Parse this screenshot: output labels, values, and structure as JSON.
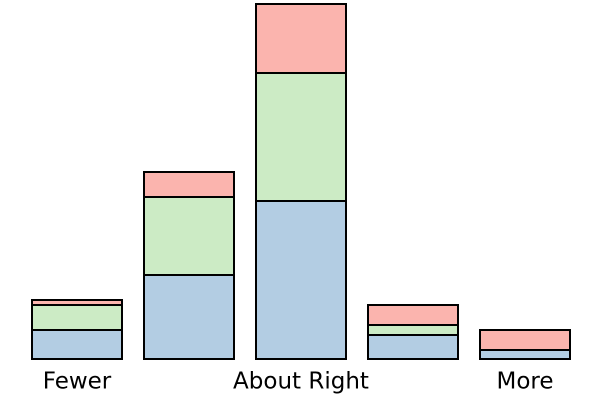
{
  "chart_data": {
    "type": "stacked_bar",
    "categories": [
      "Fewer",
      null,
      "About Right",
      null,
      "More"
    ],
    "series": [
      {
        "color": "#b3cde3",
        "values": [
          29,
          84,
          158,
          24,
          9
        ]
      },
      {
        "color": "#ccebc5",
        "values": [
          25,
          78,
          128,
          10,
          0
        ]
      },
      {
        "color": "#fbb4ae",
        "values": [
          5,
          25,
          69,
          20,
          20
        ]
      }
    ],
    "ylim": [
      0,
      355
    ]
  }
}
